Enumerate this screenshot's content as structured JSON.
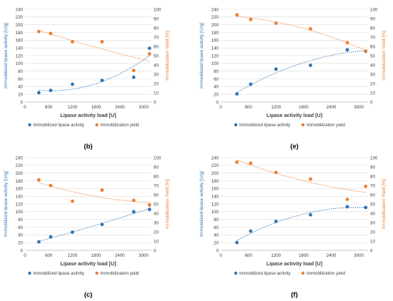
{
  "chart_data": [
    {
      "panel_label": "(b)",
      "type": "scatter",
      "xlabel": "Lipase activity load [U]",
      "ylabel_left": "Immobilized lipase activity [U/g]",
      "ylabel_right": "Immobilization Yield [%]",
      "xlim": [
        0,
        3200
      ],
      "xticks": [
        0,
        600,
        1200,
        1800,
        2400,
        3000
      ],
      "ylim_left": [
        0,
        240
      ],
      "yticks_left": [
        0,
        20,
        40,
        60,
        80,
        100,
        120,
        140,
        160,
        180,
        200,
        220,
        240
      ],
      "ylim_right": [
        0,
        100
      ],
      "yticks_right": [
        0,
        10,
        20,
        30,
        40,
        50,
        60,
        70,
        80,
        90,
        100
      ],
      "legend": [
        "Immobilized lipase acitvity",
        "Immobilization yield"
      ],
      "series": [
        {
          "name": "Immobilized lipase acitvity",
          "axis": "left",
          "color": "#2E75B6",
          "x": [
            350,
            650,
            1200,
            1950,
            2750,
            3150
          ],
          "y": [
            24,
            30,
            46,
            56,
            64,
            139
          ]
        },
        {
          "name": "Immobilization yield",
          "axis": "right",
          "color": "#ED7D31",
          "x": [
            350,
            650,
            1200,
            1950,
            2750,
            3150
          ],
          "y": [
            76,
            74,
            65,
            65,
            34,
            52
          ]
        }
      ]
    },
    {
      "panel_label": "(e)",
      "type": "scatter",
      "xlabel": "Lipase activity load [U]",
      "ylabel_left": "Immobilized lipase activity [U/g]",
      "ylabel_right": "Immobilization Yield [%]",
      "xlim": [
        0,
        3200
      ],
      "xticks": [
        0,
        600,
        1200,
        1800,
        2400,
        3000
      ],
      "ylim_left": [
        0,
        240
      ],
      "yticks_left": [
        0,
        20,
        40,
        60,
        80,
        100,
        120,
        140,
        160,
        180,
        200,
        220,
        240
      ],
      "ylim_right": [
        0,
        100
      ],
      "yticks_right": [
        0,
        10,
        20,
        30,
        40,
        50,
        60,
        70,
        80,
        90,
        100
      ],
      "legend": [
        "Immobilized lipase activity",
        "Immobilization yield"
      ],
      "series": [
        {
          "name": "Immobilized lipase activity",
          "axis": "left",
          "color": "#2E75B6",
          "x": [
            350,
            650,
            1200,
            1950,
            2750,
            3150
          ],
          "y": [
            21,
            46,
            85,
            95,
            135,
            131
          ]
        },
        {
          "name": "Immobilization yield",
          "axis": "right",
          "color": "#ED7D31",
          "x": [
            350,
            650,
            1200,
            1950,
            2750,
            3150
          ],
          "y": [
            94,
            89,
            85,
            79,
            64,
            55
          ]
        }
      ]
    },
    {
      "panel_label": "(c)",
      "type": "scatter",
      "xlabel": "Lipase activity load [U]",
      "ylabel_left": "Immobilized lipase activity [U/g]",
      "ylabel_right": "Immobilization Yield [%]",
      "xlim": [
        0,
        3200
      ],
      "xticks": [
        0,
        600,
        1200,
        1800,
        2400,
        3000
      ],
      "ylim_left": [
        0,
        240
      ],
      "yticks_left": [
        0,
        20,
        40,
        60,
        80,
        100,
        120,
        140,
        160,
        180,
        200,
        220,
        240
      ],
      "ylim_right": [
        0,
        100
      ],
      "yticks_right": [
        0,
        10,
        20,
        30,
        40,
        50,
        60,
        70,
        80,
        90,
        100
      ],
      "legend": [
        "Immobilized lipase acitvity",
        "Immobilization yield"
      ],
      "series": [
        {
          "name": "Immobilized lipase acitvity",
          "axis": "left",
          "color": "#2E75B6",
          "x": [
            350,
            650,
            1200,
            1950,
            2750,
            3150
          ],
          "y": [
            22,
            35,
            47,
            67,
            100,
            106
          ]
        },
        {
          "name": "Immobilization yield",
          "axis": "right",
          "color": "#ED7D31",
          "x": [
            350,
            650,
            1200,
            1950,
            2750,
            3150
          ],
          "y": [
            76,
            70,
            53,
            65,
            54,
            49
          ]
        }
      ]
    },
    {
      "panel_label": "(f)",
      "type": "scatter",
      "xlabel": "Lipase activity load [U]",
      "ylabel_left": "Immobilized lipase activity [U/g]",
      "ylabel_right": "Immobilization Yield [%]",
      "xlim": [
        0,
        3200
      ],
      "xticks": [
        0,
        600,
        1200,
        1800,
        2400,
        3000
      ],
      "ylim_left": [
        0,
        240
      ],
      "yticks_left": [
        0,
        20,
        40,
        60,
        80,
        100,
        120,
        140,
        160,
        180,
        200,
        220,
        240
      ],
      "ylim_right": [
        0,
        100
      ],
      "yticks_right": [
        0,
        10,
        20,
        30,
        40,
        50,
        60,
        70,
        80,
        90,
        100
      ],
      "legend": [
        "Immobilized lipase acitvity",
        "Immobilization yield"
      ],
      "series": [
        {
          "name": "Immobilized lipase acitvity",
          "axis": "left",
          "color": "#2E75B6",
          "x": [
            350,
            650,
            1200,
            1950,
            2750,
            3150
          ],
          "y": [
            20,
            50,
            75,
            92,
            113,
            111
          ]
        },
        {
          "name": "Immobilization yield",
          "axis": "right",
          "color": "#ED7D31",
          "x": [
            350,
            650,
            1200,
            1950,
            2750,
            3150
          ],
          "y": [
            95,
            94,
            84,
            77,
            55,
            69
          ]
        }
      ]
    }
  ]
}
